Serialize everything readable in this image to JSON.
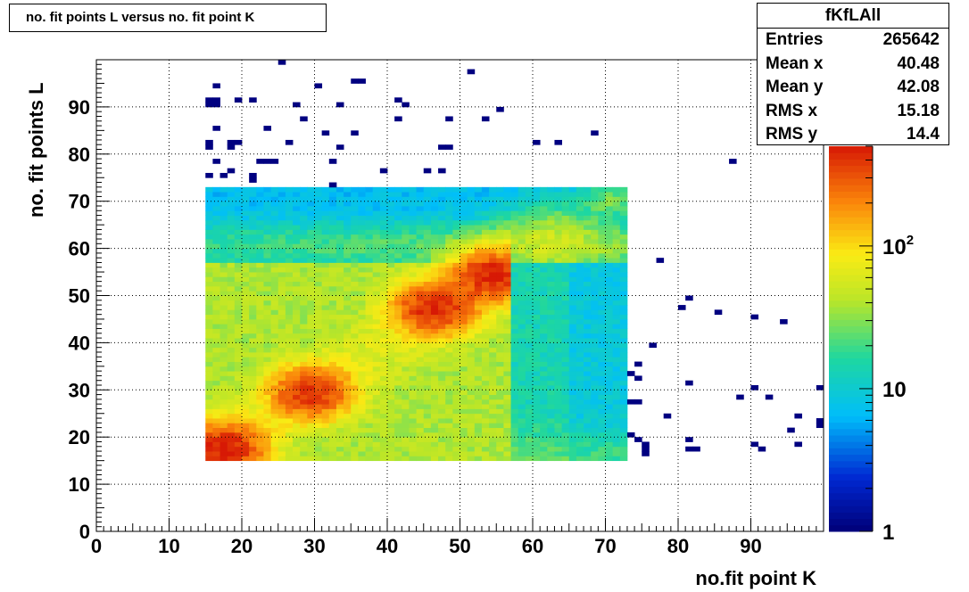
{
  "title": "no. fit points L versus no. fit point K",
  "stats": {
    "name": "fKfLAll",
    "rows": [
      {
        "label": "Entries",
        "value": "265642"
      },
      {
        "label": "Mean x",
        "value": "40.48"
      },
      {
        "label": "Mean y",
        "value": "42.08"
      },
      {
        "label": "RMS x",
        "value": "15.18"
      },
      {
        "label": "RMS y",
        "value": "14.4"
      }
    ]
  },
  "chart_data": {
    "type": "heatmap",
    "xlabel": "no.fit point K",
    "ylabel": "no. fit points  L",
    "xlim": [
      0,
      100
    ],
    "ylim": [
      0,
      100
    ],
    "x_ticks": [
      "0",
      "10",
      "20",
      "30",
      "40",
      "50",
      "60",
      "70",
      "80",
      "90"
    ],
    "y_ticks": [
      "0",
      "10",
      "20",
      "30",
      "40",
      "50",
      "60",
      "70",
      "80",
      "90"
    ],
    "grid": true,
    "z_scale": "log",
    "zlim": [
      1,
      500
    ],
    "z_ticks": [
      {
        "value": 1,
        "base": "1",
        "exp": ""
      },
      {
        "value": 10,
        "base": "10",
        "exp": ""
      },
      {
        "value": 100,
        "base": "10",
        "exp": "2"
      }
    ],
    "sparse_points": [
      [
        25,
        99
      ],
      [
        51,
        97
      ],
      [
        16,
        94
      ],
      [
        30,
        94
      ],
      [
        35,
        95
      ],
      [
        36,
        95
      ],
      [
        15,
        91
      ],
      [
        16,
        91
      ],
      [
        19,
        91
      ],
      [
        21,
        91
      ],
      [
        41,
        91
      ],
      [
        15,
        90
      ],
      [
        16,
        90
      ],
      [
        27,
        90
      ],
      [
        33,
        90
      ],
      [
        42,
        90
      ],
      [
        55,
        89
      ],
      [
        28,
        87
      ],
      [
        41,
        87
      ],
      [
        48,
        87
      ],
      [
        53,
        87
      ],
      [
        16,
        85
      ],
      [
        23,
        85
      ],
      [
        31,
        84
      ],
      [
        35,
        84
      ],
      [
        68,
        84
      ],
      [
        15,
        82
      ],
      [
        15,
        81
      ],
      [
        18,
        82
      ],
      [
        19,
        82
      ],
      [
        18,
        81
      ],
      [
        26,
        82
      ],
      [
        33,
        81
      ],
      [
        47,
        81
      ],
      [
        48,
        81
      ],
      [
        60,
        82
      ],
      [
        63,
        82
      ],
      [
        16,
        78
      ],
      [
        22,
        78
      ],
      [
        23,
        78
      ],
      [
        24,
        78
      ],
      [
        32,
        78
      ],
      [
        87,
        78
      ],
      [
        18,
        76
      ],
      [
        17,
        75
      ],
      [
        15,
        75
      ],
      [
        21,
        75
      ],
      [
        21,
        74
      ],
      [
        39,
        76
      ],
      [
        45,
        76
      ],
      [
        47,
        76
      ],
      [
        32,
        73
      ],
      [
        77,
        57
      ],
      [
        81,
        49
      ],
      [
        80,
        47
      ],
      [
        85,
        46
      ],
      [
        90,
        45
      ],
      [
        94,
        44
      ],
      [
        76,
        39
      ],
      [
        74,
        35
      ],
      [
        73,
        33
      ],
      [
        74,
        32
      ],
      [
        81,
        31
      ],
      [
        90,
        30
      ],
      [
        99,
        30
      ],
      [
        88,
        28
      ],
      [
        92,
        28
      ],
      [
        73,
        27
      ],
      [
        74,
        27
      ],
      [
        78,
        24
      ],
      [
        96,
        24
      ],
      [
        99,
        23
      ],
      [
        99,
        22
      ],
      [
        95,
        21
      ],
      [
        73,
        20
      ],
      [
        74,
        19
      ],
      [
        75,
        18
      ],
      [
        81,
        19
      ],
      [
        81,
        17
      ],
      [
        82,
        17
      ],
      [
        90,
        18
      ],
      [
        91,
        17
      ],
      [
        96,
        18
      ],
      [
        75,
        17
      ],
      [
        75,
        16
      ]
    ],
    "dense_regions": [
      {
        "name": "upper-band",
        "x": [
          15,
          73
        ],
        "y": [
          57,
          73
        ]
      },
      {
        "name": "main-block",
        "x": [
          15,
          57
        ],
        "y": [
          15,
          57
        ]
      },
      {
        "name": "right-block",
        "x": [
          57,
          73
        ],
        "y": [
          15,
          57
        ]
      }
    ],
    "hotspots": [
      {
        "x": 46,
        "y": 47,
        "count": 400
      },
      {
        "x": 29,
        "y": 29,
        "count": 350
      },
      {
        "x": 17,
        "y": 17,
        "count": 450
      },
      {
        "x": 54,
        "y": 54,
        "count": 400
      }
    ],
    "colors": {
      "frame": "#000000",
      "grid": "#000000",
      "background": "#ffffff"
    }
  }
}
